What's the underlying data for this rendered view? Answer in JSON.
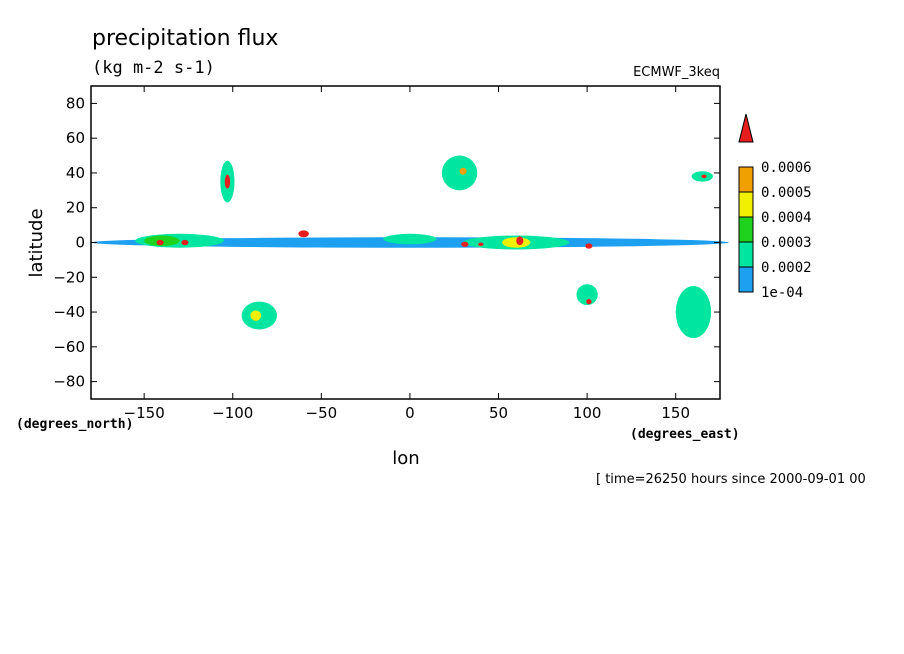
{
  "chart_data": {
    "type": "contour",
    "title": "precipitation flux",
    "units": "(kg m-2 s-1)",
    "dataset": "ECMWF_3keq",
    "xlabel": "lon",
    "ylabel": "latitude",
    "x_units": "(degrees_east)",
    "y_units": "(degrees_north)",
    "xlim": [
      -180,
      175
    ],
    "ylim": [
      -90,
      90
    ],
    "x_ticks": [
      -150,
      -100,
      -50,
      0,
      50,
      100,
      150
    ],
    "y_ticks": [
      80,
      60,
      40,
      20,
      0,
      -20,
      -40,
      -60,
      -80
    ],
    "time_label": "[ time=26250 hours since 2000-09-01 00",
    "colorbar": {
      "levels": [
        "1e-04",
        "0.0002",
        "0.0003",
        "0.0004",
        "0.0005",
        "0.0006"
      ],
      "colors": [
        "#1ea0f0",
        "#00e6a0",
        "#1ed21e",
        "#f0f000",
        "#f0a000",
        "#e61e1e"
      ]
    },
    "features": [
      {
        "lon": 0,
        "lat": 0,
        "rx": 180,
        "ry": 3,
        "level": 0
      },
      {
        "lon": -130,
        "lat": 1,
        "rx": 25,
        "ry": 4,
        "level": 1
      },
      {
        "lon": -140,
        "lat": 1,
        "rx": 10,
        "ry": 3,
        "level": 2
      },
      {
        "lon": -141,
        "lat": 0,
        "rx": 2,
        "ry": 1.5,
        "level": 5
      },
      {
        "lon": -127,
        "lat": 0,
        "rx": 2,
        "ry": 1.5,
        "level": 5
      },
      {
        "lon": -60,
        "lat": 5,
        "rx": 3,
        "ry": 2,
        "level": 5
      },
      {
        "lon": 0,
        "lat": 2,
        "rx": 15,
        "ry": 3,
        "level": 1
      },
      {
        "lon": 60,
        "lat": 0,
        "rx": 30,
        "ry": 4,
        "level": 1
      },
      {
        "lon": 60,
        "lat": 0,
        "rx": 8,
        "ry": 3,
        "level": 3
      },
      {
        "lon": 62,
        "lat": 1,
        "rx": 2,
        "ry": 2.5,
        "level": 5
      },
      {
        "lon": 31,
        "lat": -1,
        "rx": 2,
        "ry": 1.5,
        "level": 5
      },
      {
        "lon": 40,
        "lat": -1,
        "rx": 1.5,
        "ry": 1,
        "level": 5
      },
      {
        "lon": 101,
        "lat": -2,
        "rx": 2,
        "ry": 1.5,
        "level": 5
      },
      {
        "lon": -103,
        "lat": 35,
        "rx": 4,
        "ry": 12,
        "level": 1
      },
      {
        "lon": -103,
        "lat": 35,
        "rx": 1.5,
        "ry": 4,
        "level": 5
      },
      {
        "lon": 28,
        "lat": 40,
        "rx": 10,
        "ry": 10,
        "level": 1
      },
      {
        "lon": 30,
        "lat": 41,
        "rx": 2,
        "ry": 2,
        "level": 4
      },
      {
        "lon": 165,
        "lat": 38,
        "rx": 6,
        "ry": 3,
        "level": 1
      },
      {
        "lon": 166,
        "lat": 38,
        "rx": 1.5,
        "ry": 1,
        "level": 5
      },
      {
        "lon": -85,
        "lat": -42,
        "rx": 10,
        "ry": 8,
        "level": 1
      },
      {
        "lon": -87,
        "lat": -42,
        "rx": 3,
        "ry": 3,
        "level": 3
      },
      {
        "lon": 100,
        "lat": -30,
        "rx": 6,
        "ry": 6,
        "level": 1
      },
      {
        "lon": 101,
        "lat": -34,
        "rx": 1.5,
        "ry": 1.5,
        "level": 5
      },
      {
        "lon": 160,
        "lat": -40,
        "rx": 10,
        "ry": 15,
        "level": 1
      }
    ]
  }
}
